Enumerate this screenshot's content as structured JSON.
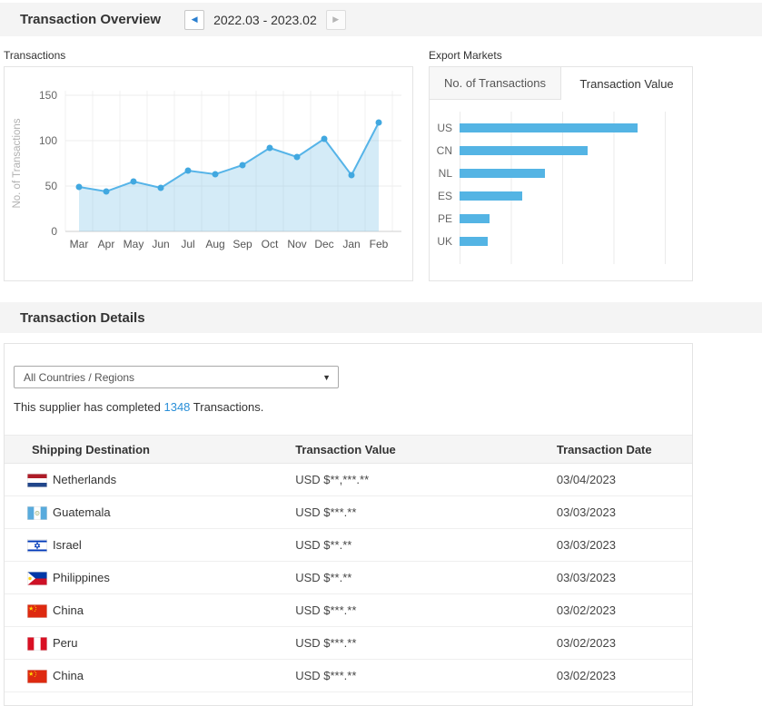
{
  "header": {
    "title": "Transaction Overview",
    "date_range": "2022.03 - 2023.02"
  },
  "icons": {
    "prev": "◀",
    "next": "▶",
    "caret": "▼"
  },
  "transactions_panel": {
    "label": "Transactions"
  },
  "export_markets": {
    "label": "Export Markets",
    "tabs": [
      {
        "label": "No. of Transactions",
        "active": false
      },
      {
        "label": "Transaction Value",
        "active": true
      }
    ]
  },
  "chart_data": [
    {
      "type": "area",
      "title": "Transactions by month",
      "categories": [
        "Mar",
        "Apr",
        "May",
        "Jun",
        "Jul",
        "Aug",
        "Sep",
        "Oct",
        "Nov",
        "Dec",
        "Jan",
        "Feb"
      ],
      "values": [
        49,
        44,
        55,
        48,
        67,
        63,
        73,
        92,
        82,
        102,
        62,
        120
      ],
      "xlabel": "",
      "ylabel": "No. of Transactions",
      "ylim": [
        0,
        150
      ],
      "yticks": [
        0,
        50,
        100,
        150
      ],
      "grid": true,
      "line_color": "#56b4e8",
      "dot_color": "#41a8e0",
      "fill_color": "rgba(132,199,233,0.35)"
    },
    {
      "type": "bar",
      "orientation": "horizontal",
      "title": "Export Markets — Transaction Value",
      "categories": [
        "US",
        "CN",
        "NL",
        "ES",
        "PE",
        "UK"
      ],
      "values": [
        100,
        72,
        48,
        35,
        17,
        16
      ],
      "value_units": "percent of largest bar (axis not labeled in UI)",
      "bar_color": "#54b4e4",
      "grid": true
    }
  ],
  "details": {
    "title": "Transaction Details",
    "filter_value": "All Countries / Regions",
    "summary_prefix": "This supplier has completed ",
    "summary_count": "1348",
    "summary_suffix": " Transactions.",
    "table": {
      "columns": [
        "Shipping Destination",
        "Transaction Value",
        "Transaction Date"
      ],
      "rows": [
        {
          "country": "Netherlands",
          "flag": "nl",
          "value": "USD $**,***.**",
          "date": "03/04/2023"
        },
        {
          "country": "Guatemala",
          "flag": "gt",
          "value": "USD $***.**",
          "date": "03/03/2023"
        },
        {
          "country": "Israel",
          "flag": "il",
          "value": "USD $**.**",
          "date": "03/03/2023"
        },
        {
          "country": "Philippines",
          "flag": "ph",
          "value": "USD $**.**",
          "date": "03/03/2023"
        },
        {
          "country": "China",
          "flag": "cn",
          "value": "USD $***.**",
          "date": "03/02/2023"
        },
        {
          "country": "Peru",
          "flag": "pe",
          "value": "USD $***.**",
          "date": "03/02/2023"
        },
        {
          "country": "China",
          "flag": "cn",
          "value": "USD $***.**",
          "date": "03/02/2023"
        }
      ]
    }
  },
  "colors": {
    "accent_blue": "#54b4e4",
    "link_blue": "#2a8fd8",
    "section_bar_bg": "#f4f4f4",
    "panel_border": "#e4e4e4"
  }
}
